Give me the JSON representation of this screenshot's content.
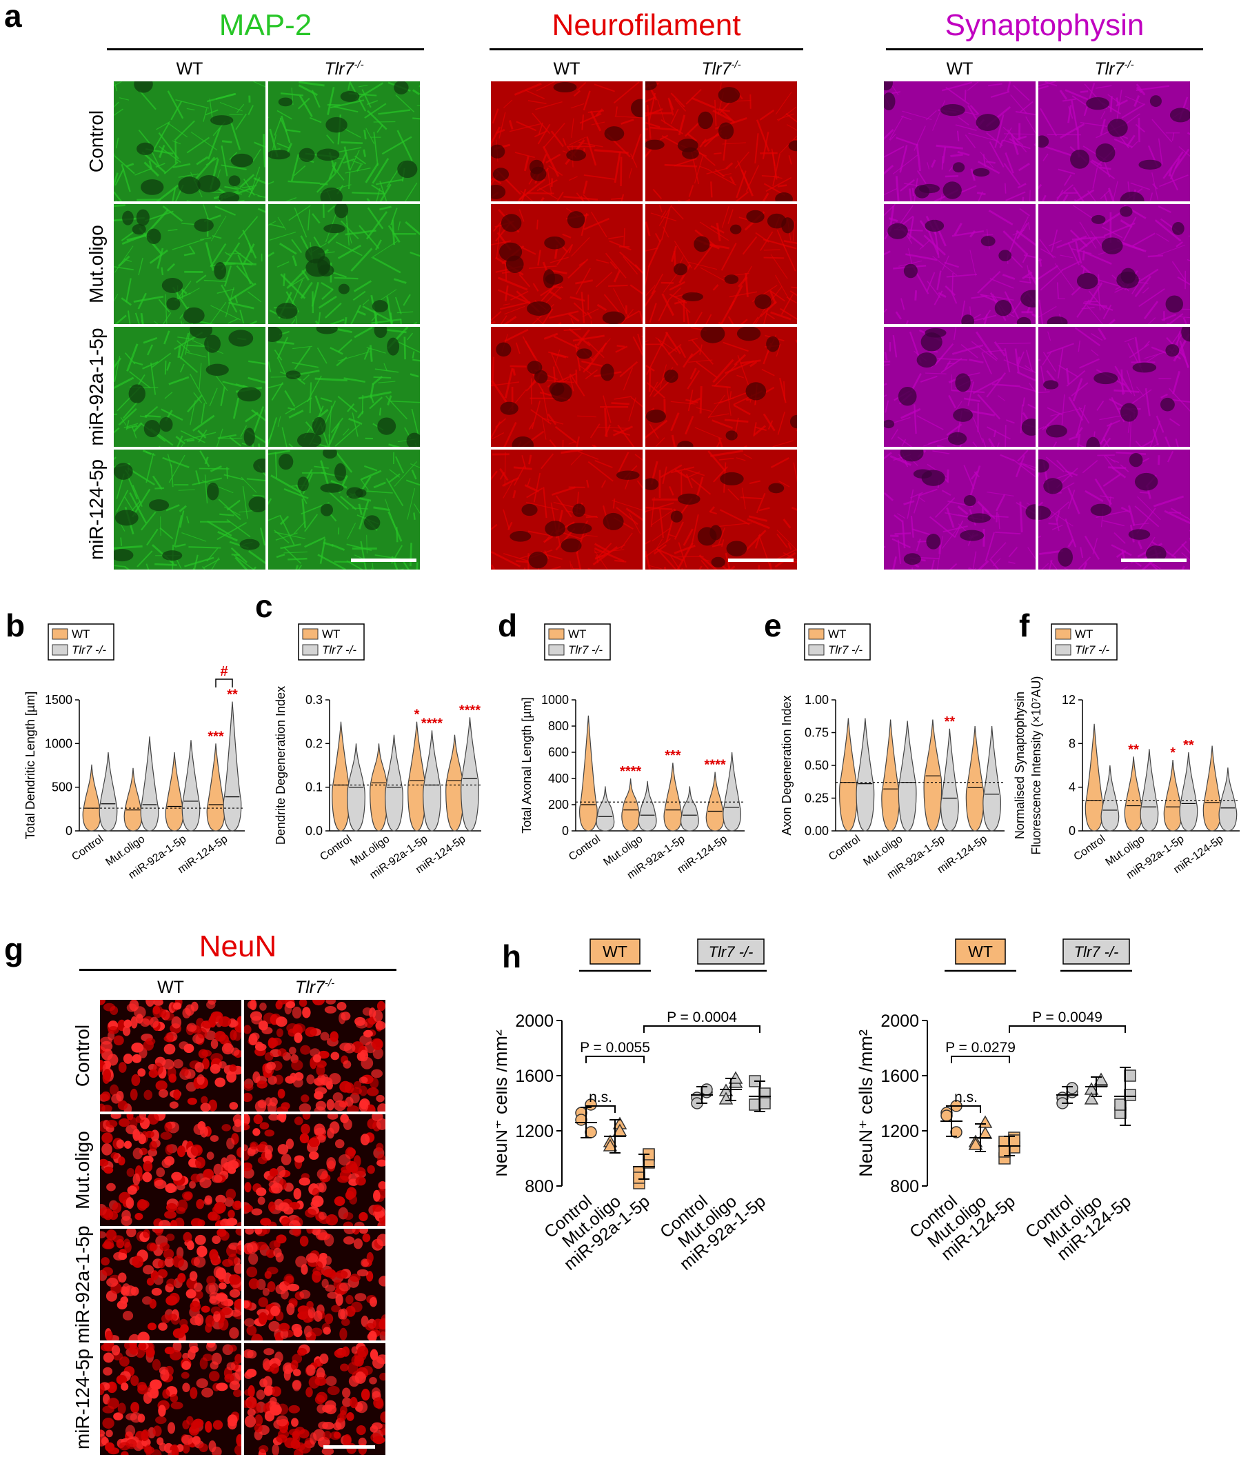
{
  "panel_letters": {
    "a": "a",
    "b": "b",
    "c": "c",
    "d": "d",
    "e": "e",
    "f": "f",
    "g": "g",
    "h": "h"
  },
  "panel_a": {
    "stains": [
      {
        "name": "MAP-2",
        "color": "#27c627",
        "bg": "#1e8a1e",
        "dark": "#0f3d0f"
      },
      {
        "name": "Neurofilament",
        "color": "#e30000",
        "bg": "#b00000",
        "dark": "#4a0000"
      },
      {
        "name": "Synaptophysin",
        "color": "#c000c0",
        "bg": "#9a009a",
        "dark": "#3c003c"
      }
    ],
    "genotypes": [
      "WT",
      "Tlr7"
    ],
    "genotype_sup": "-/-",
    "rows": [
      "Control",
      "Mut.oligo",
      "miR-92a-1-5p",
      "miR-124-5p"
    ]
  },
  "violin_panels": [
    {
      "letter": "b",
      "ylabel": "Total Dendritic Length [µm]",
      "yticks": [
        "0",
        "500",
        "1000",
        "1500"
      ],
      "ylim": [
        0,
        1500
      ],
      "categories": [
        "Control",
        "Mut.oligo",
        "miR-92a-1-5p",
        "miR-124-5p"
      ],
      "legend": [
        "WT",
        "Tlr7 -/-"
      ],
      "dashed": 260,
      "series": [
        {
          "name": "WT",
          "color": "#f6b777",
          "medians": [
            260,
            240,
            280,
            300
          ],
          "maxes": [
            760,
            720,
            900,
            1000
          ]
        },
        {
          "name": "Tlr7 -/-",
          "color": "#d4d4d4",
          "medians": [
            310,
            300,
            340,
            390
          ],
          "maxes": [
            900,
            1080,
            1040,
            1480
          ]
        }
      ],
      "stars": [
        [
          "",
          "",
          ""
        ],
        [
          "",
          "",
          ""
        ],
        [
          "",
          "",
          ""
        ],
        [
          "***",
          "**",
          ""
        ]
      ],
      "extra": "#"
    },
    {
      "letter": "c",
      "ylabel": "Dendrite Degeneration Index",
      "yticks": [
        "0.0",
        "0.1",
        "0.2",
        "0.3"
      ],
      "ylim": [
        0,
        0.3
      ],
      "categories": [
        "Control",
        "Mut.oligo",
        "miR-92a-1-5p",
        "miR-124-5p"
      ],
      "legend": [
        "WT",
        "Tlr7 -/-"
      ],
      "dashed": 0.105,
      "series": [
        {
          "name": "WT",
          "color": "#f6b777",
          "medians": [
            0.105,
            0.11,
            0.115,
            0.115
          ],
          "maxes": [
            0.25,
            0.2,
            0.25,
            0.22
          ]
        },
        {
          "name": "Tlr7 -/-",
          "color": "#d4d4d4",
          "medians": [
            0.1,
            0.1,
            0.105,
            0.12
          ],
          "maxes": [
            0.2,
            0.22,
            0.23,
            0.26
          ]
        }
      ],
      "stars": [
        [
          "",
          "",
          ""
        ],
        [
          "",
          "",
          ""
        ],
        [
          "*",
          "****",
          ""
        ],
        [
          "",
          "****",
          ""
        ]
      ],
      "extra": ""
    },
    {
      "letter": "d",
      "ylabel": "Total Axonal Length [µm]",
      "yticks": [
        "0",
        "200",
        "400",
        "600",
        "800",
        "1000"
      ],
      "ylim": [
        0,
        1000
      ],
      "categories": [
        "Control",
        "Mut.oligo",
        "miR-92a-1-5p",
        "miR-124-5p"
      ],
      "legend": [
        "WT",
        "Tlr7 -/-"
      ],
      "dashed": 220,
      "series": [
        {
          "name": "WT",
          "color": "#f6b777",
          "medians": [
            200,
            160,
            160,
            150
          ],
          "maxes": [
            880,
            400,
            520,
            450
          ]
        },
        {
          "name": "Tlr7 -/-",
          "color": "#d4d4d4",
          "medians": [
            110,
            120,
            120,
            180
          ],
          "maxes": [
            340,
            380,
            340,
            600
          ]
        }
      ],
      "stars": [
        [
          "",
          "",
          ""
        ],
        [
          "****",
          "",
          ""
        ],
        [
          "***",
          "",
          ""
        ],
        [
          "****",
          "",
          ""
        ]
      ],
      "extra": ""
    },
    {
      "letter": "e",
      "ylabel": "Axon Degeneration Index",
      "yticks": [
        "0.00",
        "0.25",
        "0.50",
        "0.75",
        "1.00"
      ],
      "ylim": [
        0,
        1
      ],
      "categories": [
        "Control",
        "Mut.oligo",
        "miR-92a-1-5p",
        "miR-124-5p"
      ],
      "legend": [
        "WT",
        "Tlr7 -/-"
      ],
      "dashed": 0.37,
      "series": [
        {
          "name": "WT",
          "color": "#f6b777",
          "medians": [
            0.37,
            0.32,
            0.42,
            0.33
          ],
          "maxes": [
            0.86,
            0.85,
            0.85,
            0.8
          ]
        },
        {
          "name": "Tlr7 -/-",
          "color": "#d4d4d4",
          "medians": [
            0.36,
            0.37,
            0.25,
            0.28
          ],
          "maxes": [
            0.86,
            0.84,
            0.78,
            0.8
          ]
        }
      ],
      "stars": [
        [
          "",
          "",
          ""
        ],
        [
          "",
          "",
          ""
        ],
        [
          "",
          "**",
          ""
        ],
        [
          "",
          "",
          ""
        ]
      ],
      "extra": ""
    },
    {
      "letter": "f",
      "ylabel": "Normalised Synaptophysin",
      "ylabel2": "Fluorescence Intensity (×10⁷AU)",
      "yticks": [
        "0",
        "4",
        "8",
        "12"
      ],
      "ylim": [
        0,
        12
      ],
      "categories": [
        "Control",
        "Mut.oligo",
        "miR-92a-1-5p",
        "miR-124-5p"
      ],
      "legend": [
        "WT",
        "Tlr7 -/-"
      ],
      "dashed": 2.8,
      "series": [
        {
          "name": "WT",
          "color": "#f6b777",
          "medians": [
            2.8,
            2.3,
            2.2,
            2.6
          ],
          "maxes": [
            9.8,
            6.8,
            6.5,
            7.8
          ]
        },
        {
          "name": "Tlr7 -/-",
          "color": "#d4d4d4",
          "medians": [
            1.9,
            2.2,
            2.5,
            2.1
          ],
          "maxes": [
            6,
            7.5,
            7.2,
            5.8
          ]
        }
      ],
      "stars": [
        [
          "",
          "",
          ""
        ],
        [
          "**",
          "",
          ""
        ],
        [
          "*",
          "**",
          ""
        ],
        [
          "",
          "",
          ""
        ]
      ],
      "extra": ""
    }
  ],
  "panel_g": {
    "title": "NeuN",
    "title_color": "#e30000",
    "genotypes": [
      "WT",
      "Tlr7"
    ],
    "genotype_sup": "-/-",
    "rows": [
      "Control",
      "Mut.oligo",
      "miR-92a-1-5p",
      "miR-124-5p"
    ]
  },
  "panel_h": {
    "ylabel": "NeuN⁺ cells /mm²",
    "yticks": [
      "800",
      "1200",
      "1600",
      "2000"
    ],
    "ylim": [
      800,
      2000
    ],
    "wt_box": "WT",
    "tlr_box": "Tlr7 -/-",
    "left": {
      "categories": [
        "Control",
        "Mut.oligo",
        "miR-92a-1-5p",
        "Control",
        "Mut.oligo",
        "miR-92a-1-5p"
      ],
      "means": [
        1260,
        1160,
        940,
        1460,
        1500,
        1450
      ],
      "sds": [
        110,
        120,
        90,
        60,
        80,
        110
      ],
      "points": [
        [
          1330,
          1190,
          1280,
          1390
        ],
        [
          1120,
          1250,
          1090,
          1200
        ],
        [
          820,
          1020,
          900,
          970,
          860,
          1030
        ],
        [
          1440,
          1480,
          1400,
          1500
        ],
        [
          1490,
          1550,
          1430,
          1580
        ],
        [
          1390,
          1470,
          1560,
          1400
        ]
      ],
      "p1": "n.s.",
      "p2": "P = 0.0055",
      "p3": "P = 0.0004"
    },
    "right": {
      "categories": [
        "Control",
        "Mut.oligo",
        "miR-124-5p",
        "Control",
        "Mut.oligo",
        "miR-124-5p"
      ],
      "means": [
        1270,
        1150,
        1090,
        1460,
        1520,
        1450
      ],
      "sds": [
        110,
        100,
        70,
        60,
        70,
        210
      ],
      "points": [
        [
          1330,
          1190,
          1310,
          1380
        ],
        [
          1120,
          1260,
          1100,
          1180
        ],
        [
          1000,
          1080,
          1120,
          1150,
          1050,
          1130
        ],
        [
          1440,
          1480,
          1400,
          1510
        ],
        [
          1500,
          1560,
          1430,
          1570
        ],
        [
          1330,
          1600,
          1390,
          1460
        ]
      ],
      "p1": "n.s.",
      "p2": "P = 0.0279",
      "p3": "P = 0.0049"
    }
  }
}
